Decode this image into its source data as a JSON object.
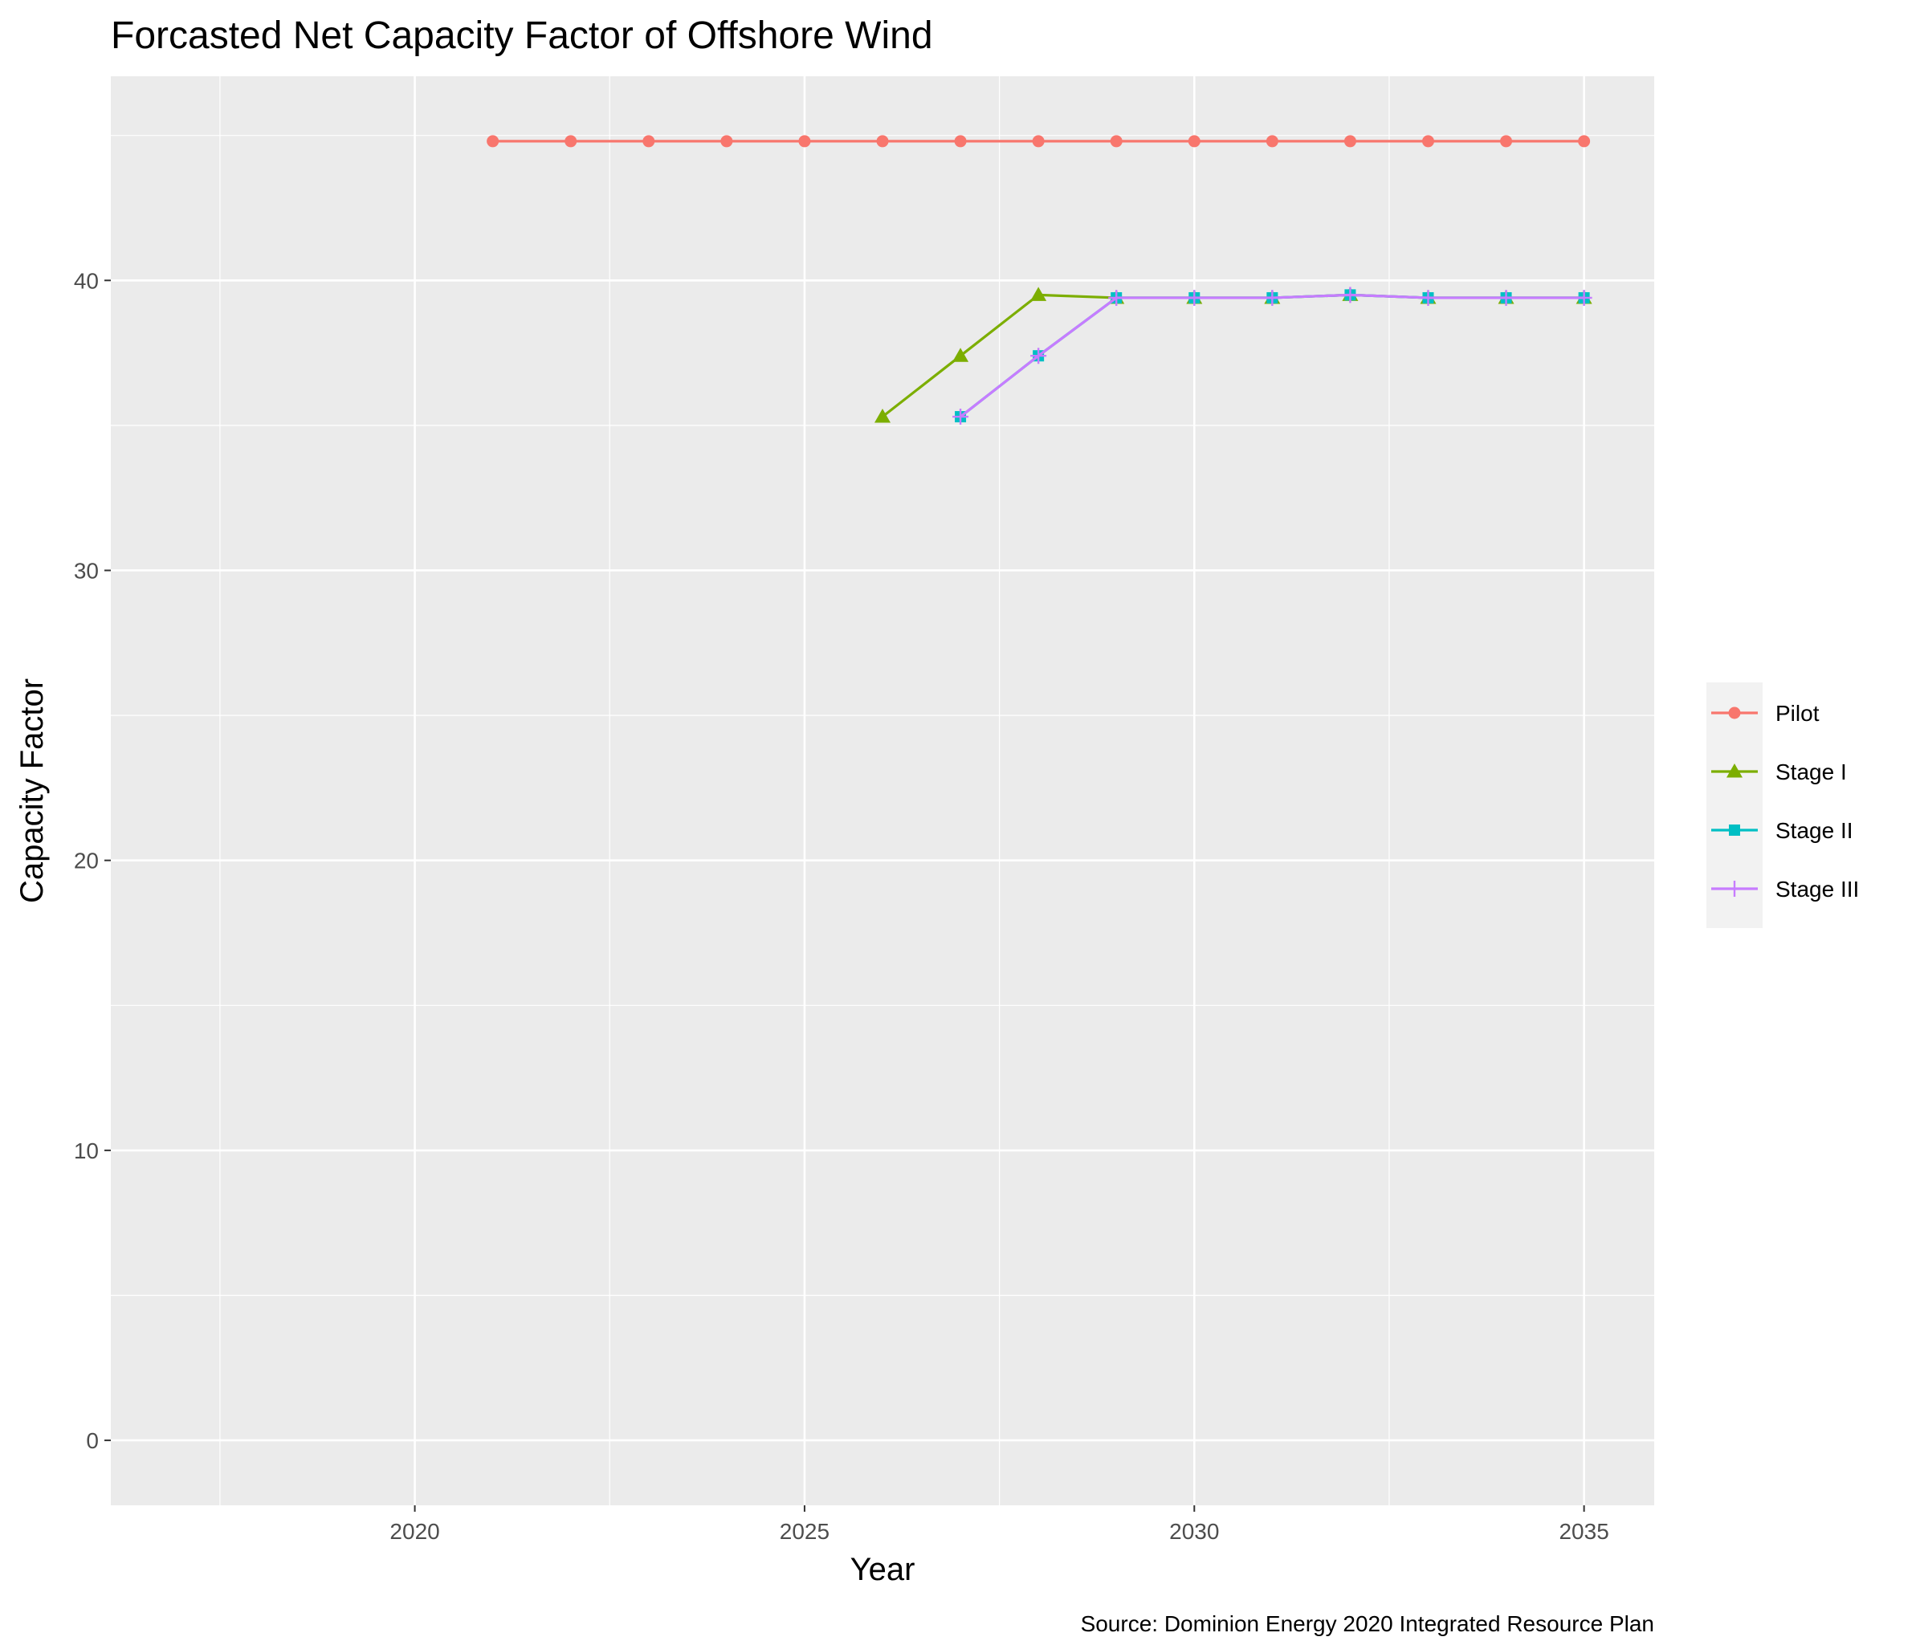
{
  "chart_data": {
    "type": "line",
    "title": "Forcasted Net Capacity Factor of Offshore Wind",
    "xlabel": "Year",
    "ylabel": "Capacity Factor",
    "caption": "Source: Dominion Energy 2020 Integrated Resource Plan",
    "xlim": [
      2016.1,
      2035.9
    ],
    "ylim": [
      -2.24,
      47.04
    ],
    "x_ticks": [
      2020,
      2025,
      2030,
      2035
    ],
    "y_ticks": [
      0,
      10,
      20,
      30,
      40
    ],
    "grid": true,
    "legend_position": "right",
    "series": [
      {
        "name": "Pilot",
        "color": "#F8766D",
        "marker": "circle",
        "x": [
          2021,
          2022,
          2023,
          2024,
          2025,
          2026,
          2027,
          2028,
          2029,
          2030,
          2031,
          2032,
          2033,
          2034,
          2035
        ],
        "values": [
          44.8,
          44.8,
          44.8,
          44.8,
          44.8,
          44.8,
          44.8,
          44.8,
          44.8,
          44.8,
          44.8,
          44.8,
          44.8,
          44.8,
          44.8
        ]
      },
      {
        "name": "Stage I",
        "color": "#7CAE00",
        "marker": "triangle",
        "x": [
          2026,
          2027,
          2028,
          2029,
          2030,
          2031,
          2032,
          2033,
          2034,
          2035
        ],
        "values": [
          35.3,
          37.4,
          39.5,
          39.4,
          39.4,
          39.4,
          39.5,
          39.4,
          39.4,
          39.4
        ]
      },
      {
        "name": "Stage II",
        "color": "#00BFC4",
        "marker": "square",
        "x": [
          2027,
          2028,
          2029,
          2030,
          2031,
          2032,
          2033,
          2034,
          2035
        ],
        "values": [
          35.3,
          37.4,
          39.4,
          39.4,
          39.4,
          39.5,
          39.4,
          39.4,
          39.4
        ]
      },
      {
        "name": "Stage III",
        "color": "#C77CFF",
        "marker": "plus",
        "x": [
          2027,
          2028,
          2029,
          2030,
          2031,
          2032,
          2033,
          2034,
          2035
        ],
        "values": [
          35.3,
          37.4,
          39.4,
          39.4,
          39.4,
          39.5,
          39.4,
          39.4,
          39.4
        ]
      }
    ]
  }
}
